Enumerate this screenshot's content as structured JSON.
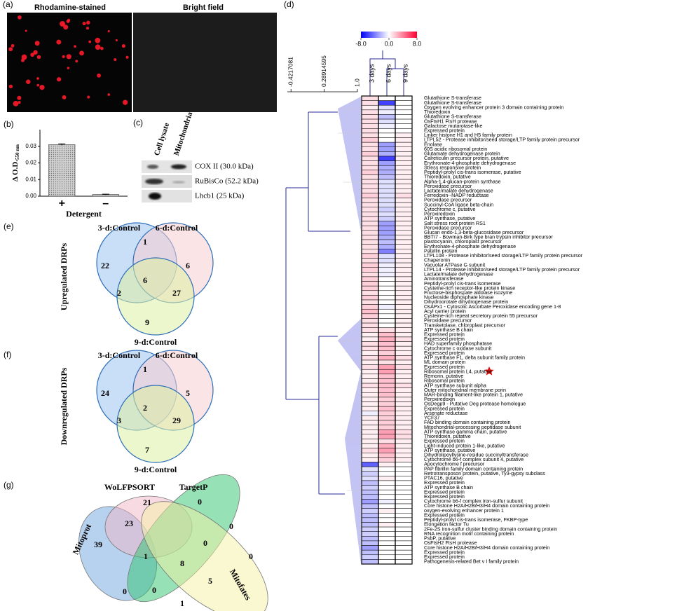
{
  "panel_labels": [
    "(a)",
    "(b)",
    "(c)",
    "(d)",
    "(e)",
    "(f)",
    "(g)"
  ],
  "panel_a": {
    "titles": [
      "Rhodamine-stained",
      "Bright field"
    ]
  },
  "panel_c": {
    "columns": [
      "Cell lysate",
      "Mitochondria"
    ],
    "rows": [
      "COX II (30.0 kDa)",
      "RuBisCo (52.2 kDa)",
      "Lhcb1 (25 kDa)"
    ]
  },
  "chart_data": [
    {
      "type": "bar",
      "categories": [
        "+",
        "–"
      ],
      "values": [
        0.031,
        0.001
      ],
      "errors": [
        0.0004,
        0.0002
      ],
      "color": "#b8b8b8",
      "y_label": "Δ O.D.",
      "y_label_sub": "550 nm",
      "x_label": "Detergent",
      "ylim": [
        0,
        0.04
      ],
      "yticks": [
        {
          "value": 0,
          "label": "0.00"
        },
        {
          "value": 0.01,
          "label": "0.01"
        },
        {
          "value": 0.02,
          "label": "0.02"
        },
        {
          "value": 0.03,
          "label": "0.03"
        }
      ]
    },
    {
      "type": "heatmap",
      "columns": [
        "3 days",
        "6 days",
        "9 days"
      ],
      "colorscale": {
        "min": -8,
        "max": 8,
        "colors": [
          "#0000ff",
          "#ffffff",
          "#ff0033"
        ],
        "ticks": [
          {
            "value": -8,
            "label": "-8.0"
          },
          {
            "value": 0,
            "label": "0.0"
          },
          {
            "value": 8,
            "label": "8.0"
          }
        ]
      },
      "dendrogram_lim": [
        -0.5,
        1
      ],
      "dendrogram_ticks": [
        -0.4217081,
        0.28914595,
        {
          "value": 1,
          "label": "1.0"
        }
      ],
      "categories": [
        "Glutathione S-transferase",
        "Glutathione S-transferase",
        "Oxygen evolving enhancer protein 3 domain containing protein",
        "Thioredoxin",
        "Glutathione S-transferase",
        "OsFtsH1 FtsH protease",
        "Galactose mutarotase-like",
        "Expressed protein",
        "Linker histone H1 and H5 family protein",
        "LTPL52 - Protease inhibitor/seed storage/LTP family protein precursor",
        "Enolase",
        "60S acidic ribosomal protein",
        "Glutamate dehydrogenase protein",
        "Calreticulin precursor protein, putative",
        "Erythronate-4-phosphate dehydrogenase",
        "Stress responsive protein",
        "Peptidyl-prolyl cis-trans isomerase, putative",
        "Thioredoxin, putative",
        "Alpha-1,4-glucan-protein synthase",
        "Peroxidase precursor",
        "Lactate/malate dehydrogenase",
        "Ferredoxin--NADP reductase",
        "Peroxidase precursor",
        "Succinyl-CoA ligase beta-chain",
        "Cytochrome c, putative",
        "Peroxiredoxin",
        "ATP synthase, putative",
        "Salt stress root protein RS1",
        "Peroxidase precursor",
        "Glucan endo-1,3-beta-glucosidase precursor",
        "BBTI7 - Bowman-Birk type bran trypsin inhibitor precursor",
        "plastocyanin, chloroplast precursor",
        "Erythronate-4-phosphate dehydrogenase",
        "Patellin protein",
        "LTPL108 - Protease inhibitor/seed storage/LTP family protein precursor",
        "Chaperonin",
        "Vacuolar ATPase G subunit",
        "LTPL14 - Protease inhibitor/seed storage/LTP family protein precursor",
        "Lactate/malate dehydrogenase",
        "Aminotransferase",
        "Peptidyl-prolyl cis-trans isomerase",
        "Cysteine-rich receptor-like protein kinase",
        "Fructose-bisphospate aldolase isozyme",
        "Nucleoside diphosphate kinase",
        "Dihydroorotate dihydrogenase protein",
        "OsAPx1 - Cytosolic Ascorbate Peroxidase encoding gene 1-8",
        "Acyl carrier protein",
        "Cysteine-rich repeat secretory protein 55 precursor",
        "Peroxidase precursor",
        "Transketolase, chloroplast precursor",
        "ATP synthase B chain",
        "Expressed protein",
        "Expressed protein",
        "HAD superfamily phosphatase",
        "Cytochrome c oxidase subunit",
        "Expressed protein",
        "ATP synthase F1, delta subunit family protein",
        "ML domain protein",
        "Expressed protein",
        "Ribosomal protein L4, putative",
        "Remorin, putative",
        "Ribosomal protein",
        "ATP synthase subunit alpha",
        "Outer mitochondrial membrane porin",
        "MAR-binding filament-like protein 1, putative",
        "Peroxiredoxin",
        "OsDegp9 - Putative Deg protease homologue",
        "Expressed protein",
        "Arsenate reductase",
        "YCF37",
        "FAD binding domain containing protein",
        "Mitochondrial-processing peptidase subunit",
        "ATP synthase gamma chain, putative",
        "Thioredoxin, putative",
        "Expressed protein",
        "Light-induced protein 1-like, putative",
        "ATP synthase, putative",
        "Dihydrolipoyllysine-residue succinyltransferase",
        "Cytochrome b6-f complex subunit 4, putative",
        "Apocytochrome f precursor",
        "PAP fibrillin family domain containing protein",
        "Retrotransposon protein, putative, Ty3-gypsy subclass",
        "PTAC16, putative",
        "Expressed protein",
        "ATP synthase B chain",
        "Expressed protein",
        "Expressed protein",
        "Cytochrome b6-f complex iron-sulfur subunit",
        "Core histone H2A/H2B/H3/H4 domain containing protein",
        "oxygen-evolving enhancer protein 1",
        "Expressed protein",
        "Peptidyl-prolyl cis-trans isomerase, FKBP-type",
        "Elongation factor Tu",
        "2Fe-2S iron-sulfur cluster binding domain containing protein",
        "RNA recognition motif containing protein",
        "PsbP, putative",
        "OsFtsH2 FtsH protease",
        "Core histone H2A/H2B/H3/H4 domain containing protein",
        "Expressed protein",
        "Expressed protein",
        "Pathogenesis-related Bet v I family protein"
      ],
      "values": [
        [
          1,
          1,
          0.5,
          1,
          1,
          1,
          1,
          1,
          1,
          1.5,
          1,
          1,
          1.5,
          1,
          1,
          1,
          1.5,
          1,
          1,
          1,
          1,
          1.5,
          1,
          1,
          1,
          1,
          1,
          1,
          1,
          1,
          1,
          1,
          1,
          1,
          1.5,
          1,
          1.5,
          1.5,
          1,
          1.5,
          1.5,
          1.5,
          1,
          1.5,
          1,
          1.5,
          2,
          1.5,
          1,
          1,
          1,
          0.5,
          0.5,
          1,
          1,
          0.5,
          1,
          0.5,
          1,
          0.5,
          0.5,
          0.5,
          1,
          0.5,
          0.5,
          0.5,
          0.5,
          0.5,
          -0.5,
          0.5,
          0.5,
          0.5,
          0.5,
          0.5,
          0.5,
          0.5,
          1,
          0.5,
          0.5,
          -5,
          -1,
          -1.5,
          -1,
          -2,
          -1.5,
          -2,
          -2,
          -3,
          -2,
          -1.5,
          -2,
          -2,
          -2,
          -1.5,
          -1.5,
          -2,
          -2,
          -3,
          -2,
          -1.5,
          -2
        ],
        [
          0,
          -6,
          -1,
          -0.5,
          -2,
          -1,
          -0.5,
          0,
          0,
          0,
          -3,
          -3,
          -2.5,
          -6,
          -3,
          -2.5,
          -2.5,
          -2,
          -1,
          -1,
          -1,
          -1,
          -1,
          -1,
          -1.5,
          -1,
          -1.5,
          -3,
          -3,
          -3,
          -2.5,
          -2,
          -2.5,
          -4,
          -1,
          -1,
          -0.5,
          -0.5,
          -0.5,
          0,
          0,
          0,
          0,
          0,
          0,
          -0.5,
          0,
          0,
          0,
          0,
          1,
          2,
          2.5,
          2,
          2,
          1.5,
          2.5,
          1,
          3,
          3,
          2,
          2,
          2,
          2,
          2,
          1.5,
          1.5,
          2,
          1.5,
          1.5,
          1.5,
          1.5,
          3,
          3,
          1,
          2.5,
          3,
          2,
          1.5,
          0.5,
          0,
          0,
          0.5,
          0,
          0,
          0,
          0,
          -0.5,
          0,
          0.5,
          0,
          0,
          0.5,
          0,
          0,
          0,
          0,
          0,
          0,
          0,
          0
        ],
        [
          0,
          0,
          0,
          0,
          0,
          0,
          0,
          0,
          0.5,
          0.5,
          0.5,
          0.5,
          0.5,
          0.5,
          0.5,
          0.5,
          0.5,
          0.5,
          0.5,
          0.5,
          0.5,
          1,
          0.5,
          0.5,
          0.5,
          0.5,
          0.5,
          0.5,
          0.5,
          0.5,
          0.5,
          0.5,
          0.5,
          0.5,
          0.5,
          0.5,
          0.5,
          0.5,
          0.5,
          0.5,
          0.5,
          0.5,
          0.5,
          0.5,
          0.5,
          0.5,
          0.5,
          0.5,
          0.5,
          0.5,
          0.5,
          0.5,
          1,
          0.5,
          0.5,
          0.5,
          1,
          0.5,
          1,
          0.5,
          0.5,
          0.5,
          1,
          0.5,
          0.5,
          0.5,
          0.5,
          0.5,
          0.5,
          0.5,
          0.5,
          0.5,
          1,
          1,
          0.5,
          0.5,
          0.5,
          0.5,
          0.5,
          0,
          0,
          0,
          0,
          0,
          0,
          0,
          0,
          0,
          0,
          0,
          0,
          0,
          0,
          0,
          0,
          0,
          0,
          0,
          0,
          0,
          0
        ]
      ]
    }
  ],
  "venn_e": {
    "title": "Upregulated DRPs",
    "sets": [
      "3-d:Control",
      "6-d:Control",
      "9-d:Control"
    ],
    "colors": [
      "#9cc2f0",
      "#f7cdd0",
      "#ddf0a4"
    ],
    "regions": [
      22,
      1,
      6,
      2,
      6,
      27,
      9
    ]
  },
  "venn_f": {
    "title": "Downregulated DRPs",
    "sets": [
      "3-d:Control",
      "6-d:Control",
      "9-d:Control"
    ],
    "colors": [
      "#9cc2f0",
      "#f7cdd0",
      "#ddf0a4"
    ],
    "regions": [
      24,
      1,
      5,
      3,
      2,
      29,
      7
    ]
  },
  "venn_g": {
    "sets": [
      "Mitoprot",
      "WoLFPSORT",
      "TargetP",
      "Mitofates"
    ],
    "colors": [
      "#6fa6e0",
      "#f2b6c8",
      "#2ec46e",
      "#f6f2a4"
    ],
    "regions": [
      39,
      21,
      0,
      23,
      1,
      0,
      0,
      8,
      0,
      0,
      5,
      0,
      1
    ]
  }
}
